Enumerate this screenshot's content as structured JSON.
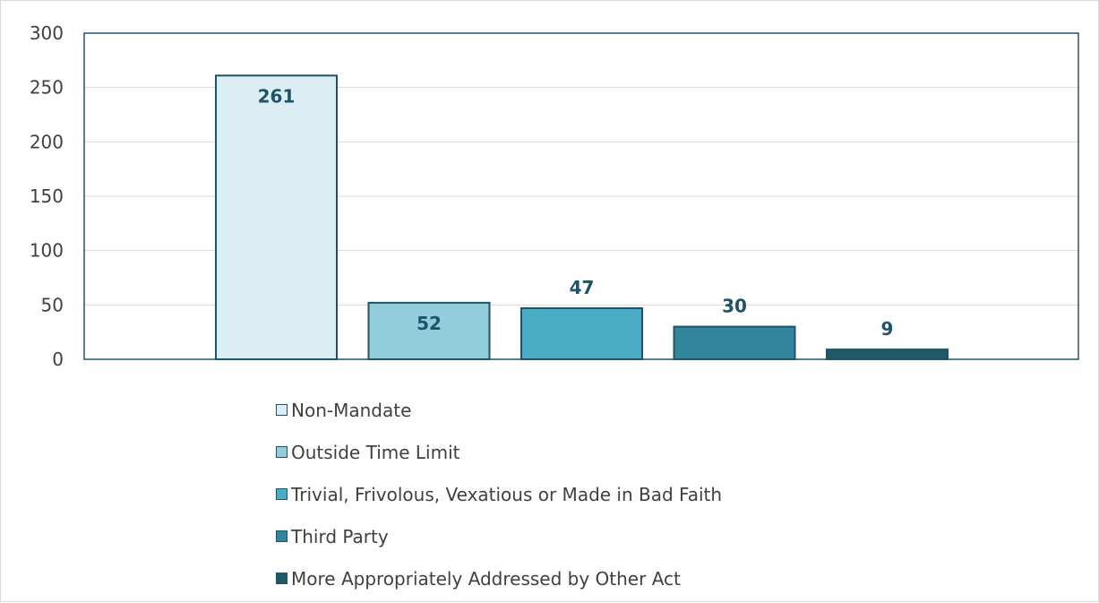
{
  "chart_data": {
    "type": "bar",
    "title": "",
    "xlabel": "",
    "ylabel": "",
    "ylim": [
      0,
      300
    ],
    "yticks": [
      0,
      50,
      100,
      150,
      200,
      250,
      300
    ],
    "grid": true,
    "legend_position": "bottom",
    "series": [
      {
        "name": "Non-Mandate",
        "value": 261,
        "color": "#dbeef4"
      },
      {
        "name": "Outside Time Limit",
        "value": 52,
        "color": "#92cddc"
      },
      {
        "name": "Trivial, Frivolous, Vexatious or Made in Bad Faith",
        "value": 47,
        "color": "#4bacc6"
      },
      {
        "name": "Third Party",
        "value": 30,
        "color": "#31859c"
      },
      {
        "name": "More Appropriately Addressed by Other Act",
        "value": 9,
        "color": "#215868"
      }
    ],
    "colors": {
      "bar_outline": "#1f5468",
      "data_label": "#1f5468",
      "axis": "#1f5468",
      "gridline": "#d9d9d9"
    }
  }
}
